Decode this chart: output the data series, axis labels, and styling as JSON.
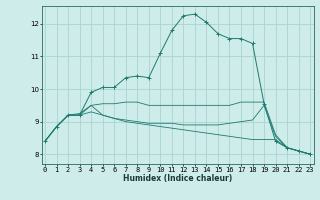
{
  "title": "",
  "xlabel": "Humidex (Indice chaleur)",
  "ylabel": "",
  "bg_color": "#ceecea",
  "line_color": "#1e7a6e",
  "grid_color": "#aad4cf",
  "x_ticks": [
    0,
    1,
    2,
    3,
    4,
    5,
    6,
    7,
    8,
    9,
    10,
    11,
    12,
    13,
    14,
    15,
    16,
    17,
    18,
    19,
    20,
    21,
    22,
    23
  ],
  "y_ticks": [
    8,
    9,
    10,
    11,
    12
  ],
  "ylim": [
    7.7,
    12.55
  ],
  "xlim": [
    -0.3,
    23.3
  ],
  "series": [
    [
      8.4,
      8.85,
      9.2,
      9.2,
      9.9,
      10.05,
      10.05,
      10.35,
      10.4,
      10.35,
      11.1,
      11.8,
      12.25,
      12.3,
      12.05,
      11.7,
      11.55,
      11.55,
      11.4,
      9.55,
      8.4,
      8.2,
      8.1,
      8.0
    ],
    [
      8.4,
      8.85,
      9.2,
      9.2,
      9.5,
      9.2,
      9.1,
      9.05,
      9.0,
      8.95,
      8.95,
      8.95,
      8.9,
      8.9,
      8.9,
      8.9,
      8.95,
      9.0,
      9.05,
      9.5,
      8.55,
      8.2,
      8.1,
      8.0
    ],
    [
      8.4,
      8.85,
      9.2,
      9.2,
      9.3,
      9.2,
      9.1,
      9.0,
      8.95,
      8.9,
      8.85,
      8.8,
      8.75,
      8.7,
      8.65,
      8.6,
      8.55,
      8.5,
      8.45,
      8.45,
      8.45,
      8.2,
      8.1,
      8.0
    ],
    [
      8.4,
      8.85,
      9.2,
      9.25,
      9.5,
      9.55,
      9.55,
      9.6,
      9.6,
      9.5,
      9.5,
      9.5,
      9.5,
      9.5,
      9.5,
      9.5,
      9.5,
      9.6,
      9.6,
      9.6,
      8.6,
      8.2,
      8.1,
      8.0
    ]
  ],
  "tick_fontsize": 5.0,
  "xlabel_fontsize": 5.5,
  "marker_size": 2.5,
  "linewidth_main": 0.7,
  "linewidth_minor": 0.6
}
